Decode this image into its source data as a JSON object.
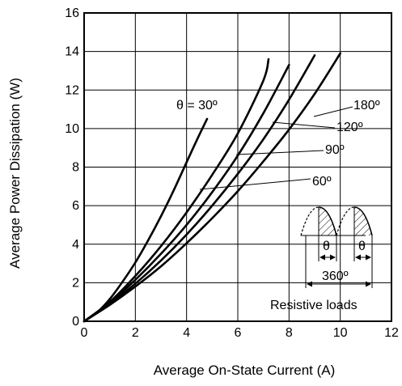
{
  "chart_data": {
    "type": "line",
    "title": "",
    "xlabel": "Average On-State Current  (A)",
    "ylabel": "Average Power Dissipation  (W)",
    "xlim": [
      0,
      12
    ],
    "ylim": [
      0,
      16
    ],
    "xticks": [
      "0",
      "2",
      "4",
      "6",
      "8",
      "10",
      "12"
    ],
    "yticks": [
      "0",
      "2",
      "4",
      "6",
      "8",
      "10",
      "12",
      "14",
      "16"
    ],
    "grid": true,
    "series": [
      {
        "name": "θ = 30º",
        "x": [
          0,
          0.5,
          1,
          1.5,
          2,
          2.5,
          3,
          3.5,
          4,
          4.4,
          4.8
        ],
        "y": [
          0,
          0.45,
          1.15,
          2.05,
          3.05,
          4.2,
          5.45,
          6.8,
          8.25,
          9.4,
          10.5
        ]
      },
      {
        "name": "60º",
        "x": [
          0,
          1,
          2,
          3,
          4,
          5,
          6,
          7,
          7.2
        ],
        "y": [
          0,
          1.0,
          2.35,
          3.9,
          5.65,
          7.6,
          9.75,
          12.5,
          13.6
        ]
      },
      {
        "name": "90º",
        "x": [
          0,
          1,
          2,
          3,
          4,
          5,
          6,
          7,
          8
        ],
        "y": [
          0,
          0.95,
          2.15,
          3.5,
          5.0,
          6.7,
          8.6,
          10.8,
          13.3
        ]
      },
      {
        "name": "120º",
        "x": [
          0,
          1,
          2,
          3,
          4,
          5,
          6,
          7,
          8,
          9
        ],
        "y": [
          0,
          0.9,
          1.95,
          3.15,
          4.5,
          6.0,
          7.65,
          9.45,
          11.5,
          13.8
        ]
      },
      {
        "name": "180º",
        "x": [
          0,
          1,
          2,
          3,
          4,
          5,
          6,
          7,
          8,
          9,
          10
        ],
        "y": [
          0,
          0.85,
          1.8,
          2.85,
          4.05,
          5.35,
          6.75,
          8.3,
          9.95,
          11.8,
          13.9
        ]
      }
    ],
    "inset": {
      "theta_left": "θ",
      "theta_right": "θ",
      "period": "360º",
      "caption": "Resistive loads"
    }
  }
}
